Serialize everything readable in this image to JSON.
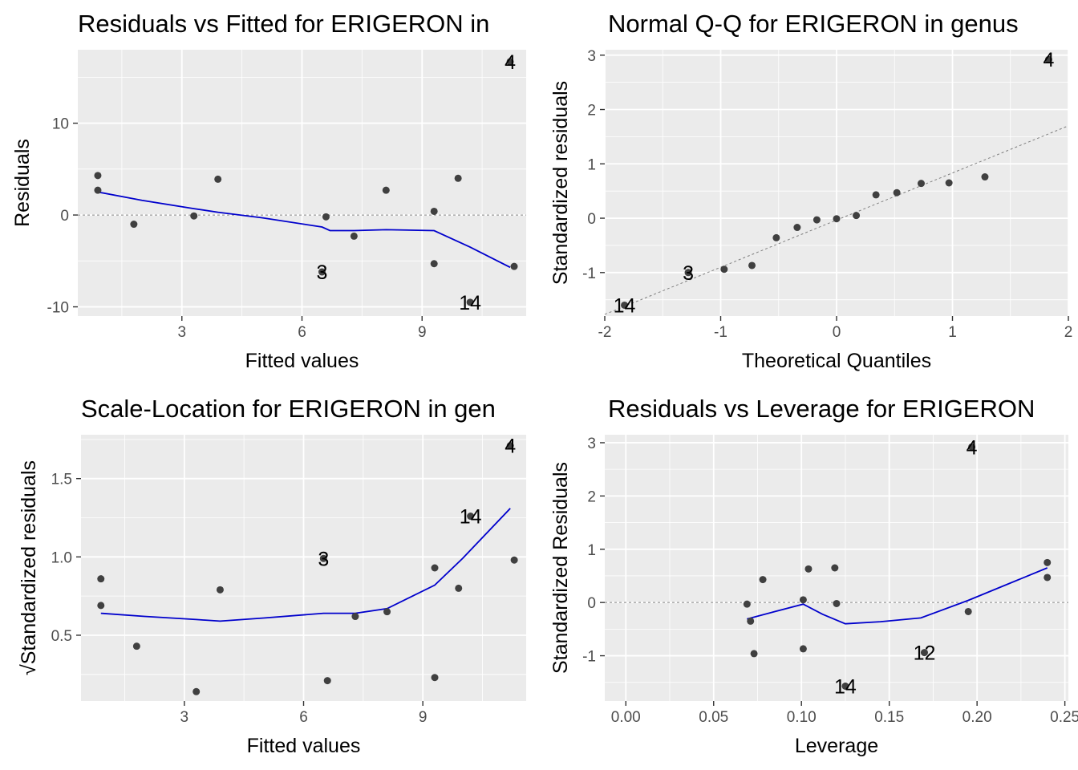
{
  "chart_data": [
    {
      "id": "rvf",
      "type": "scatter",
      "title": "Residuals vs Fitted for ERIGERON in",
      "xlabel": "Fitted values",
      "ylabel": "Residuals",
      "xlim": [
        0.4,
        11.6
      ],
      "ylim": [
        -11,
        18
      ],
      "xticks": [
        3,
        6,
        9
      ],
      "xtick_labels": [
        "3",
        "6",
        "9"
      ],
      "yticks": [
        -10,
        0,
        10
      ],
      "ytick_labels": [
        "-10",
        "0",
        "10"
      ],
      "grid": true,
      "refline": {
        "type": "hline",
        "y": 0
      },
      "points": [
        {
          "x": 0.9,
          "y": 4.3
        },
        {
          "x": 0.9,
          "y": 2.7
        },
        {
          "x": 1.8,
          "y": -1.0
        },
        {
          "x": 3.3,
          "y": -0.1
        },
        {
          "x": 3.9,
          "y": 3.9
        },
        {
          "x": 6.5,
          "y": -6.2
        },
        {
          "x": 6.6,
          "y": -0.2
        },
        {
          "x": 7.3,
          "y": -2.3
        },
        {
          "x": 8.1,
          "y": 2.7
        },
        {
          "x": 9.3,
          "y": 0.4
        },
        {
          "x": 9.3,
          "y": -5.3
        },
        {
          "x": 9.9,
          "y": 4.0
        },
        {
          "x": 10.2,
          "y": -9.5
        },
        {
          "x": 11.2,
          "y": 16.7
        },
        {
          "x": 11.3,
          "y": -5.6
        }
      ],
      "labels": [
        {
          "x": 11.2,
          "y": 16.7,
          "text": "4"
        },
        {
          "x": 6.5,
          "y": -6.2,
          "text": "3"
        },
        {
          "x": 10.2,
          "y": -9.5,
          "text": "14"
        }
      ],
      "smooth": [
        {
          "x": 0.9,
          "y": 2.5
        },
        {
          "x": 2.0,
          "y": 1.6
        },
        {
          "x": 3.3,
          "y": 0.7
        },
        {
          "x": 3.9,
          "y": 0.3
        },
        {
          "x": 5.0,
          "y": -0.3
        },
        {
          "x": 6.5,
          "y": -1.3
        },
        {
          "x": 6.7,
          "y": -1.7
        },
        {
          "x": 7.3,
          "y": -1.7
        },
        {
          "x": 8.1,
          "y": -1.6
        },
        {
          "x": 9.3,
          "y": -1.7
        },
        {
          "x": 10.2,
          "y": -3.5
        },
        {
          "x": 11.2,
          "y": -5.7
        }
      ]
    },
    {
      "id": "qq",
      "type": "scatter",
      "title": "Normal Q-Q for ERIGERON in genus",
      "xlabel": "Theoretical Quantiles",
      "ylabel": "Standardized residuals",
      "xlim": [
        -2.0,
        2.0
      ],
      "ylim": [
        -1.8,
        3.1
      ],
      "xticks": [
        -2,
        -1,
        0,
        1,
        2
      ],
      "xtick_labels": [
        "-2",
        "-1",
        "0",
        "1",
        "2"
      ],
      "yticks": [
        -1,
        0,
        1,
        2,
        3
      ],
      "ytick_labels": [
        "-1",
        "0",
        "1",
        "2",
        "3"
      ],
      "grid": true,
      "refline": {
        "type": "line",
        "x1": -2.0,
        "y1": -1.77,
        "x2": 2.0,
        "y2": 1.7
      },
      "points": [
        {
          "x": -1.83,
          "y": -1.6
        },
        {
          "x": -1.28,
          "y": -1.0
        },
        {
          "x": -0.97,
          "y": -0.94
        },
        {
          "x": -0.73,
          "y": -0.87
        },
        {
          "x": -0.52,
          "y": -0.36
        },
        {
          "x": -0.34,
          "y": -0.17
        },
        {
          "x": -0.17,
          "y": -0.03
        },
        {
          "x": 0.0,
          "y": -0.01
        },
        {
          "x": 0.17,
          "y": 0.05
        },
        {
          "x": 0.34,
          "y": 0.43
        },
        {
          "x": 0.52,
          "y": 0.47
        },
        {
          "x": 0.73,
          "y": 0.64
        },
        {
          "x": 0.97,
          "y": 0.65
        },
        {
          "x": 1.28,
          "y": 0.76
        },
        {
          "x": 1.83,
          "y": 2.92
        }
      ],
      "labels": [
        {
          "x": 1.83,
          "y": 2.92,
          "text": "4"
        },
        {
          "x": -1.28,
          "y": -1.0,
          "text": "3"
        },
        {
          "x": -1.83,
          "y": -1.6,
          "text": "14"
        }
      ]
    },
    {
      "id": "sl",
      "type": "scatter",
      "title": "Scale-Location for ERIGERON in gen",
      "xlabel": "Fitted values",
      "ylabel": "√Standardized residuals",
      "xlim": [
        0.4,
        11.6
      ],
      "ylim": [
        0.08,
        1.78
      ],
      "xticks": [
        3,
        6,
        9
      ],
      "xtick_labels": [
        "3",
        "6",
        "9"
      ],
      "yticks": [
        0.5,
        1.0,
        1.5
      ],
      "ytick_labels": [
        "0.5",
        "1.0",
        "1.5"
      ],
      "grid": true,
      "points": [
        {
          "x": 0.9,
          "y": 0.86
        },
        {
          "x": 0.9,
          "y": 0.69
        },
        {
          "x": 1.8,
          "y": 0.43
        },
        {
          "x": 3.3,
          "y": 0.14
        },
        {
          "x": 3.9,
          "y": 0.79
        },
        {
          "x": 6.5,
          "y": 0.99
        },
        {
          "x": 6.6,
          "y": 0.21
        },
        {
          "x": 7.3,
          "y": 0.62
        },
        {
          "x": 8.1,
          "y": 0.65
        },
        {
          "x": 9.3,
          "y": 0.93
        },
        {
          "x": 9.3,
          "y": 0.23
        },
        {
          "x": 9.9,
          "y": 0.8
        },
        {
          "x": 10.2,
          "y": 1.26
        },
        {
          "x": 11.2,
          "y": 1.71
        },
        {
          "x": 11.3,
          "y": 0.98
        }
      ],
      "labels": [
        {
          "x": 11.2,
          "y": 1.71,
          "text": "4"
        },
        {
          "x": 10.2,
          "y": 1.26,
          "text": "14"
        },
        {
          "x": 6.5,
          "y": 0.99,
          "text": "3"
        }
      ],
      "smooth": [
        {
          "x": 0.9,
          "y": 0.64
        },
        {
          "x": 2.0,
          "y": 0.62
        },
        {
          "x": 3.3,
          "y": 0.6
        },
        {
          "x": 3.9,
          "y": 0.59
        },
        {
          "x": 5.0,
          "y": 0.61
        },
        {
          "x": 6.5,
          "y": 0.64
        },
        {
          "x": 7.3,
          "y": 0.64
        },
        {
          "x": 8.1,
          "y": 0.67
        },
        {
          "x": 9.3,
          "y": 0.82
        },
        {
          "x": 10.0,
          "y": 0.99
        },
        {
          "x": 11.2,
          "y": 1.31
        }
      ]
    },
    {
      "id": "rvl",
      "type": "scatter",
      "title": "Residuals vs Leverage for ERIGERON",
      "xlabel": "Leverage",
      "ylabel": "Standardized Residuals",
      "xlim": [
        -0.012,
        0.252
      ],
      "ylim": [
        -1.85,
        3.15
      ],
      "xticks": [
        0,
        0.05,
        0.1,
        0.15,
        0.2,
        0.25
      ],
      "xtick_labels": [
        "0.00",
        "0.05",
        "0.10",
        "0.15",
        "0.20",
        "0.25"
      ],
      "yticks": [
        -1,
        0,
        1,
        2,
        3
      ],
      "ytick_labels": [
        "-1",
        "0",
        "1",
        "2",
        "3"
      ],
      "grid": true,
      "refline": {
        "type": "hline",
        "y": 0
      },
      "points": [
        {
          "x": 0.069,
          "y": -0.03
        },
        {
          "x": 0.071,
          "y": -0.35
        },
        {
          "x": 0.073,
          "y": -0.96
        },
        {
          "x": 0.078,
          "y": 0.43
        },
        {
          "x": 0.101,
          "y": -0.87
        },
        {
          "x": 0.101,
          "y": 0.05
        },
        {
          "x": 0.104,
          "y": 0.63
        },
        {
          "x": 0.119,
          "y": 0.65
        },
        {
          "x": 0.12,
          "y": -0.02
        },
        {
          "x": 0.125,
          "y": -1.57
        },
        {
          "x": 0.17,
          "y": -0.94
        },
        {
          "x": 0.195,
          "y": -0.17
        },
        {
          "x": 0.197,
          "y": 2.92
        },
        {
          "x": 0.24,
          "y": 0.47
        },
        {
          "x": 0.24,
          "y": 0.75
        }
      ],
      "labels": [
        {
          "x": 0.197,
          "y": 2.92,
          "text": "4"
        },
        {
          "x": 0.17,
          "y": -0.94,
          "text": "12"
        },
        {
          "x": 0.125,
          "y": -1.57,
          "text": "14"
        }
      ],
      "smooth": [
        {
          "x": 0.069,
          "y": -0.31
        },
        {
          "x": 0.085,
          "y": -0.17
        },
        {
          "x": 0.101,
          "y": -0.03
        },
        {
          "x": 0.112,
          "y": -0.22
        },
        {
          "x": 0.125,
          "y": -0.4
        },
        {
          "x": 0.145,
          "y": -0.36
        },
        {
          "x": 0.168,
          "y": -0.29
        },
        {
          "x": 0.195,
          "y": 0.04
        },
        {
          "x": 0.24,
          "y": 0.65
        }
      ]
    }
  ]
}
